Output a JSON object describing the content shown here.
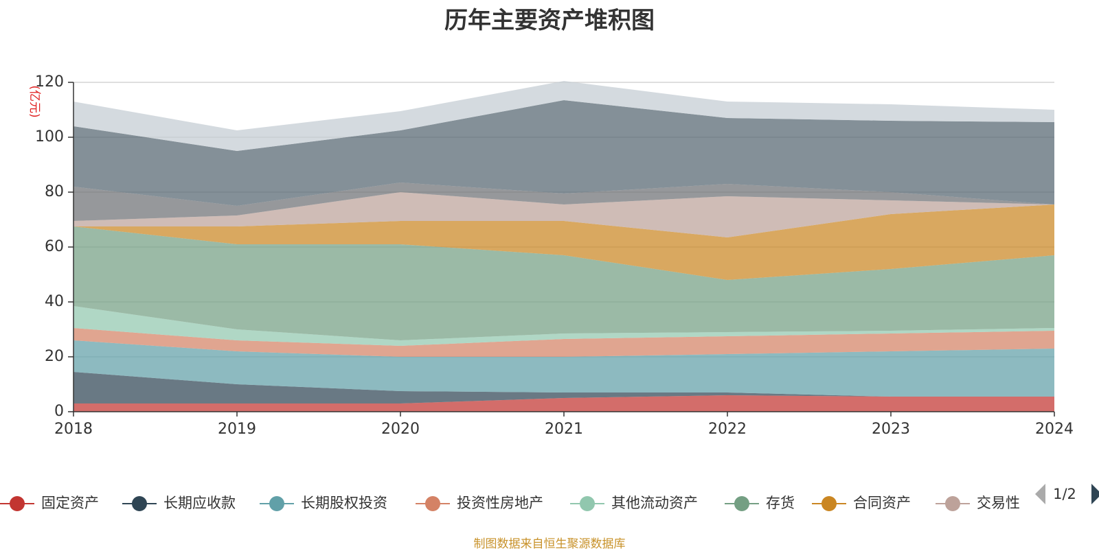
{
  "title": "历年主要资产堆积图",
  "source_note": "制图数据来自恒生聚源数据库",
  "legend_page": "1/2",
  "chart_data": {
    "type": "area",
    "stacked": true,
    "title": "历年主要资产堆积图",
    "ylabel": "(亿元)",
    "ylim": [
      0,
      120
    ],
    "yticks": [
      0,
      20,
      40,
      60,
      80,
      100,
      120
    ],
    "grid": true,
    "legend_position": "bottom",
    "categories": [
      "2018",
      "2019",
      "2020",
      "2021",
      "2022",
      "2023",
      "2024"
    ],
    "series": [
      {
        "name": "固定资产",
        "color": "#c23531",
        "values": [
          3,
          3,
          3,
          5,
          6,
          5.5,
          5.5
        ]
      },
      {
        "name": "长期应收款",
        "color": "#2f4554",
        "values": [
          11.5,
          7,
          4.5,
          2,
          1,
          0,
          0
        ]
      },
      {
        "name": "长期股权投资",
        "color": "#61a0a8",
        "values": [
          11.5,
          12,
          12.5,
          13,
          14,
          16.5,
          17.5
        ]
      },
      {
        "name": "投资性房地产",
        "color": "#d48265",
        "values": [
          4.5,
          4,
          4,
          6.5,
          6.5,
          6.5,
          6.5
        ]
      },
      {
        "name": "其他流动资产",
        "color": "#91c7ae",
        "values": [
          8,
          4,
          2,
          2,
          1.5,
          1,
          1
        ]
      },
      {
        "name": "存货",
        "color": "#749f83",
        "values": [
          29,
          31,
          35,
          28.5,
          19,
          22.5,
          26.5
        ]
      },
      {
        "name": "合同资产",
        "color": "#ca8622",
        "values": [
          0,
          6.5,
          8.5,
          12.5,
          15.5,
          20,
          18.5
        ]
      },
      {
        "name": "交易性",
        "color": "#bda29a",
        "values": [
          2,
          4,
          10.5,
          6,
          15,
          5,
          0
        ]
      },
      {
        "color": "#6e7074",
        "values": [
          12.5,
          3.5,
          3.5,
          4,
          4.5,
          3,
          0
        ]
      },
      {
        "color": "#546570",
        "values": [
          22,
          20,
          19,
          34,
          24,
          26,
          30
        ]
      },
      {
        "color": "#c4ccd3",
        "values": [
          9,
          7.5,
          7,
          7,
          6,
          6,
          4.5
        ]
      }
    ]
  }
}
